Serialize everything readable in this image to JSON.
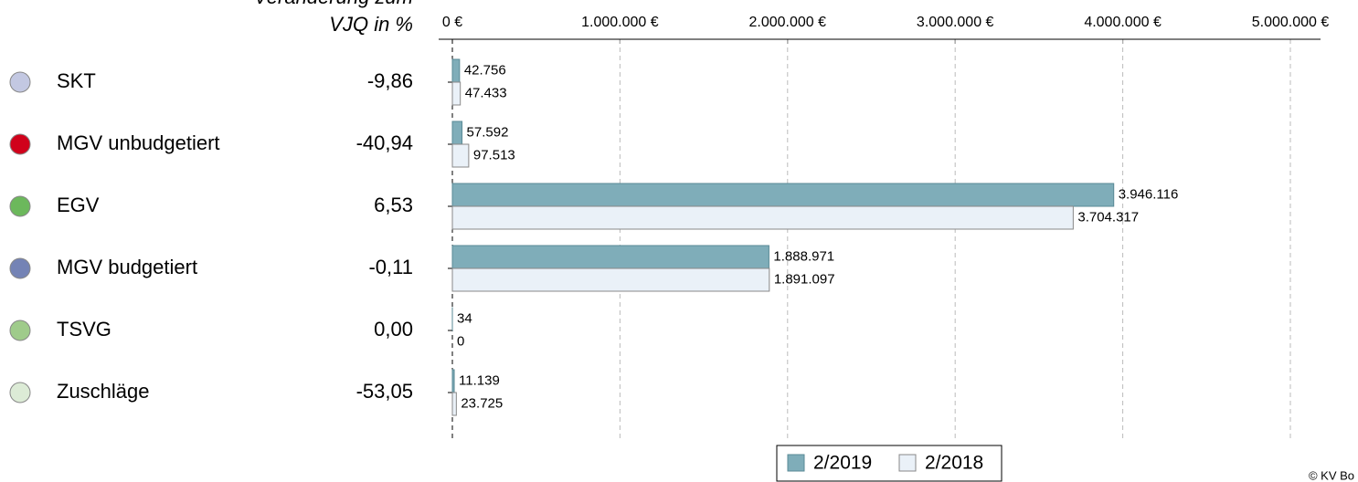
{
  "chart_data": {
    "type": "bar",
    "orientation": "horizontal",
    "change_header": [
      "Veränderung zum",
      "VJQ in %"
    ],
    "categories": [
      "SKT",
      "MGV unbudgetiert",
      "EGV",
      "MGV budgetiert",
      "TSVG",
      "Zuschläge"
    ],
    "category_colors": [
      "#c3c8e2",
      "#d0021b",
      "#6cb85c",
      "#7483b5",
      "#9fcb8b",
      "#dcebd6"
    ],
    "changes": [
      {
        "value": -9.86,
        "label": "-9,86"
      },
      {
        "value": -40.94,
        "label": "-40,94"
      },
      {
        "value": 6.53,
        "label": "6,53"
      },
      {
        "value": -0.11,
        "label": "-0,11"
      },
      {
        "value": 0,
        "label": "0,00"
      },
      {
        "value": -53.05,
        "label": "-53,05"
      }
    ],
    "negative_color": "#d0021b",
    "series": [
      {
        "name": "2/2019",
        "color": "#7fadb9",
        "values": [
          42756,
          57592,
          3946116,
          1888971,
          34,
          11139
        ],
        "value_labels": [
          "42.756",
          "57.592",
          "3.946.116",
          "1.888.971",
          "34",
          "11.139"
        ]
      },
      {
        "name": "2/2018",
        "color": "#eaf1f8",
        "values": [
          47433,
          97513,
          3704317,
          1891097,
          0,
          23725
        ],
        "value_labels": [
          "47.433",
          "97.513",
          "3.704.317",
          "1.891.097",
          "0",
          "23.725"
        ]
      }
    ],
    "xlim": [
      0,
      5180000
    ],
    "xticks": [
      {
        "value": 0,
        "label": "0 €"
      },
      {
        "value": 1000000,
        "label": "1.000.000 €"
      },
      {
        "value": 2000000,
        "label": "2.000.000 €"
      },
      {
        "value": 3000000,
        "label": "3.000.000 €"
      },
      {
        "value": 4000000,
        "label": "4.000.000 €"
      },
      {
        "value": 5000000,
        "label": "5.000.000 €"
      }
    ],
    "grid": true,
    "legend": "bottom",
    "source": "© KV Bo"
  }
}
